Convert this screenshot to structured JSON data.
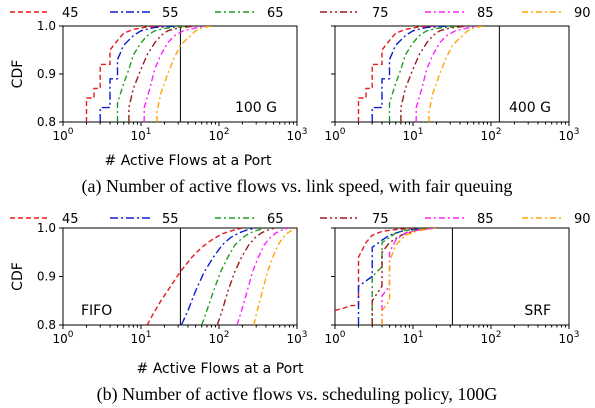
{
  "figure": {
    "legend_labels": [
      "45",
      "55",
      "65",
      "75",
      "85",
      "90"
    ],
    "caption_a": "(a) Number of active flows vs. link speed, with fair queuing",
    "caption_b": "(b) Number of active flows vs. scheduling policy, 100G",
    "colors": [
      "#e31a1c",
      "#0a1fd6",
      "#1f9c1f",
      "#9b1c1c",
      "#ff22ff",
      "#ffa500"
    ]
  },
  "chart_data": [
    {
      "type": "line",
      "panel_label": "100 G",
      "xlabel": "# Active Flows at a Port",
      "ylabel": "CDF",
      "xscale": "log",
      "xlim": [
        1,
        1000
      ],
      "ylim": [
        0.8,
        1.0
      ],
      "xticks": [
        "10^0",
        "10^1",
        "10^2",
        "10^3"
      ],
      "yticks": [
        "0.8",
        "0.9",
        "1.0"
      ],
      "legend_placement": "top",
      "vline_x": 32,
      "series": [
        {
          "name": "45",
          "x": [
            2,
            2,
            2.5,
            2.5,
            3,
            3,
            4,
            4,
            5,
            6,
            8,
            12,
            20
          ],
          "y": [
            0.8,
            0.85,
            0.85,
            0.87,
            0.87,
            0.92,
            0.92,
            0.95,
            0.97,
            0.985,
            0.993,
            0.998,
            1.0
          ]
        },
        {
          "name": "55",
          "x": [
            3,
            3,
            4,
            4,
            5,
            5,
            6,
            8,
            10,
            15,
            30
          ],
          "y": [
            0.8,
            0.83,
            0.83,
            0.89,
            0.89,
            0.93,
            0.96,
            0.98,
            0.99,
            0.997,
            1.0
          ]
        },
        {
          "name": "65",
          "x": [
            5,
            5,
            6,
            7,
            8,
            10,
            12,
            15,
            20,
            40
          ],
          "y": [
            0.8,
            0.84,
            0.88,
            0.91,
            0.94,
            0.965,
            0.98,
            0.99,
            0.995,
            1.0
          ]
        },
        {
          "name": "75",
          "x": [
            7,
            7,
            8,
            10,
            12,
            15,
            18,
            22,
            30,
            50
          ],
          "y": [
            0.8,
            0.83,
            0.87,
            0.91,
            0.94,
            0.965,
            0.98,
            0.99,
            0.996,
            1.0
          ]
        },
        {
          "name": "85",
          "x": [
            11,
            11,
            13,
            15,
            18,
            22,
            27,
            35,
            50,
            70
          ],
          "y": [
            0.8,
            0.83,
            0.87,
            0.91,
            0.94,
            0.965,
            0.98,
            0.99,
            0.996,
            1.0
          ]
        },
        {
          "name": "90",
          "x": [
            16,
            16,
            18,
            22,
            26,
            32,
            40,
            50,
            60,
            80
          ],
          "y": [
            0.8,
            0.82,
            0.86,
            0.9,
            0.93,
            0.96,
            0.975,
            0.99,
            0.996,
            1.0
          ]
        }
      ]
    },
    {
      "type": "line",
      "panel_label": "400 G",
      "xlabel": "# Active Flows at a Port",
      "ylabel": "",
      "xscale": "log",
      "xlim": [
        1,
        1000
      ],
      "ylim": [
        0.8,
        1.0
      ],
      "xticks": [
        "10^0",
        "10^1",
        "10^2",
        "10^3"
      ],
      "yticks": [],
      "vline_x": 128,
      "series": [
        {
          "name": "45",
          "x": [
            2,
            2,
            2.5,
            2.5,
            3,
            3,
            4,
            4,
            5,
            6,
            8,
            12,
            20
          ],
          "y": [
            0.8,
            0.85,
            0.85,
            0.87,
            0.87,
            0.92,
            0.92,
            0.95,
            0.97,
            0.985,
            0.993,
            0.998,
            1.0
          ]
        },
        {
          "name": "55",
          "x": [
            3,
            3,
            4,
            4,
            5,
            5,
            6,
            8,
            10,
            15,
            30
          ],
          "y": [
            0.8,
            0.83,
            0.83,
            0.89,
            0.89,
            0.93,
            0.96,
            0.98,
            0.99,
            0.997,
            1.0
          ]
        },
        {
          "name": "65",
          "x": [
            5,
            5,
            6,
            7,
            8,
            10,
            12,
            15,
            20,
            40
          ],
          "y": [
            0.8,
            0.84,
            0.88,
            0.91,
            0.94,
            0.965,
            0.98,
            0.99,
            0.995,
            1.0
          ]
        },
        {
          "name": "75",
          "x": [
            7,
            7,
            8,
            10,
            12,
            15,
            18,
            22,
            30,
            50
          ],
          "y": [
            0.8,
            0.83,
            0.87,
            0.91,
            0.94,
            0.965,
            0.98,
            0.99,
            0.996,
            1.0
          ]
        },
        {
          "name": "85",
          "x": [
            11,
            11,
            13,
            15,
            18,
            22,
            27,
            35,
            50,
            70
          ],
          "y": [
            0.8,
            0.83,
            0.87,
            0.91,
            0.94,
            0.965,
            0.98,
            0.99,
            0.996,
            1.0
          ]
        },
        {
          "name": "90",
          "x": [
            16,
            16,
            18,
            22,
            26,
            32,
            40,
            50,
            60,
            80
          ],
          "y": [
            0.8,
            0.82,
            0.86,
            0.9,
            0.93,
            0.96,
            0.975,
            0.99,
            0.996,
            1.0
          ]
        }
      ]
    },
    {
      "type": "line",
      "panel_label": "FIFO",
      "xlabel": "# Active Flows at a Port",
      "ylabel": "CDF",
      "xscale": "log",
      "xlim": [
        1,
        1000
      ],
      "ylim": [
        0.8,
        1.0
      ],
      "xticks": [
        "10^0",
        "10^1",
        "10^2",
        "10^3"
      ],
      "yticks": [
        "0.8",
        "0.9",
        "1.0"
      ],
      "legend_placement": "top",
      "vline_x": 32,
      "series": [
        {
          "name": "45",
          "x": [
            12,
            14,
            18,
            24,
            32,
            45,
            60,
            80,
            110,
            150,
            200
          ],
          "y": [
            0.8,
            0.82,
            0.85,
            0.88,
            0.91,
            0.94,
            0.96,
            0.975,
            0.988,
            0.995,
            1.0
          ]
        },
        {
          "name": "55",
          "x": [
            33,
            40,
            50,
            65,
            85,
            110,
            140,
            180,
            230,
            300
          ],
          "y": [
            0.8,
            0.83,
            0.87,
            0.91,
            0.94,
            0.965,
            0.98,
            0.99,
            0.996,
            1.0
          ]
        },
        {
          "name": "65",
          "x": [
            60,
            70,
            85,
            105,
            130,
            160,
            200,
            250,
            320,
            400
          ],
          "y": [
            0.8,
            0.83,
            0.87,
            0.91,
            0.94,
            0.965,
            0.98,
            0.99,
            0.996,
            1.0
          ]
        },
        {
          "name": "75",
          "x": [
            95,
            110,
            130,
            160,
            195,
            240,
            290,
            350,
            430,
            520
          ],
          "y": [
            0.8,
            0.83,
            0.87,
            0.91,
            0.94,
            0.965,
            0.98,
            0.99,
            0.996,
            1.0
          ]
        },
        {
          "name": "85",
          "x": [
            170,
            195,
            230,
            270,
            320,
            380,
            450,
            540,
            650,
            780
          ],
          "y": [
            0.8,
            0.83,
            0.87,
            0.91,
            0.94,
            0.965,
            0.98,
            0.99,
            0.996,
            1.0
          ]
        },
        {
          "name": "90",
          "x": [
            280,
            310,
            360,
            420,
            490,
            570,
            660,
            760,
            880,
            1000
          ],
          "y": [
            0.8,
            0.83,
            0.87,
            0.91,
            0.94,
            0.965,
            0.98,
            0.99,
            0.996,
            1.0
          ]
        }
      ]
    },
    {
      "type": "line",
      "panel_label": "SRF",
      "xlabel": "# Active Flows at a Port",
      "ylabel": "",
      "xscale": "log",
      "xlim": [
        1,
        1000
      ],
      "ylim": [
        0.8,
        1.0
      ],
      "xticks": [
        "10^0",
        "10^1",
        "10^2",
        "10^3"
      ],
      "yticks": [],
      "vline_x": 32,
      "series": [
        {
          "name": "45",
          "x": [
            1.0,
            1.3,
            1.6,
            2,
            2,
            2.5,
            3,
            4,
            6,
            10,
            20
          ],
          "y": [
            0.83,
            0.835,
            0.84,
            0.84,
            0.94,
            0.97,
            0.985,
            0.993,
            0.997,
            0.999,
            1.0
          ]
        },
        {
          "name": "55",
          "x": [
            2,
            2,
            3,
            3,
            4,
            5,
            7,
            10,
            15,
            20
          ],
          "y": [
            0.8,
            0.88,
            0.9,
            0.96,
            0.975,
            0.985,
            0.993,
            0.997,
            0.999,
            1.0
          ]
        },
        {
          "name": "65",
          "x": [
            3,
            3,
            4,
            4,
            5,
            6,
            8,
            12,
            20
          ],
          "y": [
            0.8,
            0.9,
            0.92,
            0.97,
            0.98,
            0.99,
            0.995,
            0.998,
            1.0
          ]
        },
        {
          "name": "75",
          "x": [
            3,
            3,
            4,
            4,
            5,
            7,
            10,
            15,
            20
          ],
          "y": [
            0.8,
            0.85,
            0.88,
            0.95,
            0.97,
            0.985,
            0.993,
            0.998,
            1.0
          ]
        },
        {
          "name": "85",
          "x": [
            4,
            4,
            5,
            5,
            6,
            8,
            12,
            20
          ],
          "y": [
            0.8,
            0.86,
            0.88,
            0.95,
            0.975,
            0.99,
            0.996,
            1.0
          ]
        },
        {
          "name": "90",
          "x": [
            4,
            4,
            5,
            5,
            6,
            8,
            12,
            20
          ],
          "y": [
            0.8,
            0.83,
            0.85,
            0.93,
            0.965,
            0.985,
            0.995,
            1.0
          ]
        }
      ]
    }
  ]
}
